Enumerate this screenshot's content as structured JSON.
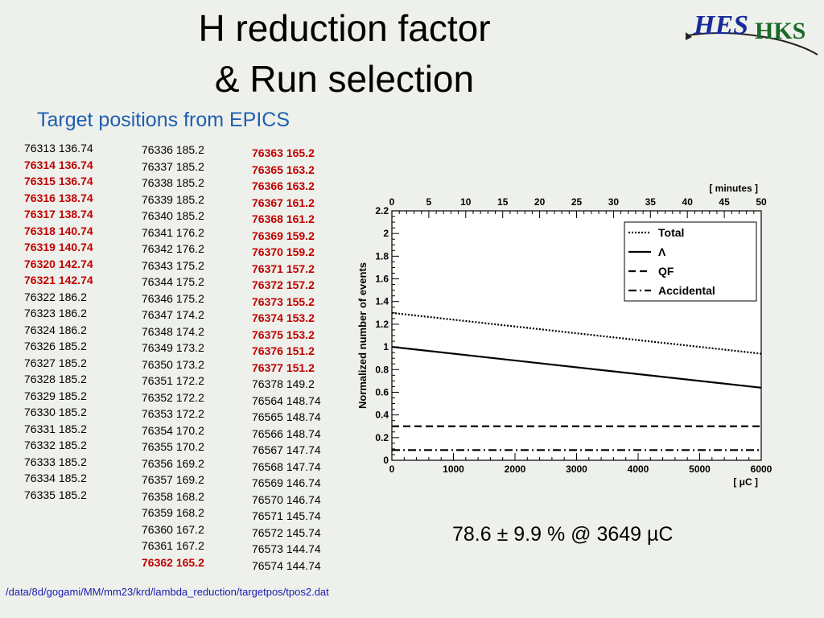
{
  "slide": {
    "title_line1": "H reduction factor",
    "title_line2": "& Run selection",
    "subtitle": "Target positions from EPICS",
    "logo_text": {
      "part1": "HES",
      "part2": "HKS"
    },
    "result": "78.6 ± 9.9 % @ 3649 µC",
    "file_path": "/data/8d/gogami/MM/mm23/krd/lambda_reduction/targetpos/tpos2.dat",
    "highlight_color": "#c00000",
    "subtitle_color": "#1f5fb0"
  },
  "runs": {
    "column1": [
      {
        "text": "76313 136.74",
        "red": false
      },
      {
        "text": "76314 136.74",
        "red": true
      },
      {
        "text": "76315 136.74",
        "red": true
      },
      {
        "text": "76316 138.74",
        "red": true
      },
      {
        "text": "76317 138.74",
        "red": true
      },
      {
        "text": "76318 140.74",
        "red": true
      },
      {
        "text": "76319 140.74",
        "red": true
      },
      {
        "text": "76320 142.74",
        "red": true
      },
      {
        "text": "76321 142.74",
        "red": true
      },
      {
        "text": "76322 186.2",
        "red": false
      },
      {
        "text": "76323 186.2",
        "red": false
      },
      {
        "text": "76324 186.2",
        "red": false
      },
      {
        "text": "76326 185.2",
        "red": false
      },
      {
        "text": "76327 185.2",
        "red": false
      },
      {
        "text": "76328 185.2",
        "red": false
      },
      {
        "text": "76329 185.2",
        "red": false
      },
      {
        "text": "76330 185.2",
        "red": false
      },
      {
        "text": "76331 185.2",
        "red": false
      },
      {
        "text": "76332 185.2",
        "red": false
      },
      {
        "text": "76333 185.2",
        "red": false
      },
      {
        "text": "76334 185.2",
        "red": false
      },
      {
        "text": "76335 185.2",
        "red": false
      }
    ],
    "column2": [
      {
        "text": "76336 185.2",
        "red": false
      },
      {
        "text": "76337 185.2",
        "red": false
      },
      {
        "text": "76338 185.2",
        "red": false
      },
      {
        "text": "76339 185.2",
        "red": false
      },
      {
        "text": "76340 185.2",
        "red": false
      },
      {
        "text": "76341 176.2",
        "red": false
      },
      {
        "text": "76342 176.2",
        "red": false
      },
      {
        "text": "76343 175.2",
        "red": false
      },
      {
        "text": "76344 175.2",
        "red": false
      },
      {
        "text": "76346 175.2",
        "red": false
      },
      {
        "text": "76347 174.2",
        "red": false
      },
      {
        "text": "76348 174.2",
        "red": false
      },
      {
        "text": "76349 173.2",
        "red": false
      },
      {
        "text": "76350 173.2",
        "red": false
      },
      {
        "text": "76351 172.2",
        "red": false
      },
      {
        "text": "76352 172.2",
        "red": false
      },
      {
        "text": "76353 172.2",
        "red": false
      },
      {
        "text": "76354 170.2",
        "red": false
      },
      {
        "text": "76355 170.2",
        "red": false
      },
      {
        "text": "76356 169.2",
        "red": false
      },
      {
        "text": "76357 169.2",
        "red": false
      },
      {
        "text": "76358 168.2",
        "red": false
      },
      {
        "text": "76359 168.2",
        "red": false
      },
      {
        "text": "76360 167.2",
        "red": false
      },
      {
        "text": "76361 167.2",
        "red": false
      },
      {
        "text": "76362 165.2",
        "red": true
      }
    ],
    "column3": [
      {
        "text": "76363 165.2",
        "red": true
      },
      {
        "text": "76365 163.2",
        "red": true
      },
      {
        "text": "76366 163.2",
        "red": true
      },
      {
        "text": "76367 161.2",
        "red": true
      },
      {
        "text": "76368 161.2",
        "red": true
      },
      {
        "text": "76369 159.2",
        "red": true
      },
      {
        "text": "76370 159.2",
        "red": true
      },
      {
        "text": "76371 157.2",
        "red": true
      },
      {
        "text": "76372 157.2",
        "red": true
      },
      {
        "text": "76373 155.2",
        "red": true
      },
      {
        "text": "76374 153.2",
        "red": true
      },
      {
        "text": "76375 153.2",
        "red": true
      },
      {
        "text": "76376 151.2",
        "red": true
      },
      {
        "text": "76377 151.2",
        "red": true
      },
      {
        "text": "76378 149.2",
        "red": false
      },
      {
        "text": "76564 148.74",
        "red": false
      },
      {
        "text": "76565 148.74",
        "red": false
      },
      {
        "text": "76566 148.74",
        "red": false
      },
      {
        "text": "76567 147.74",
        "red": false
      },
      {
        "text": "76568 147.74",
        "red": false
      },
      {
        "text": "76569 146.74",
        "red": false
      },
      {
        "text": "76570 146.74",
        "red": false
      },
      {
        "text": "76571 145.74",
        "red": false
      },
      {
        "text": "76572 145.74",
        "red": false
      },
      {
        "text": "76573 144.74",
        "red": false
      },
      {
        "text": "76574 144.74",
        "red": false
      }
    ]
  },
  "chart_data": {
    "type": "line",
    "ylabel": "Normalized number of events",
    "xlabel": "[  μC ]",
    "x2label": "[ minutes ]",
    "xlim": [
      0,
      6000
    ],
    "x2lim": [
      0,
      50
    ],
    "ylim": [
      0,
      2.2
    ],
    "x_ticks": [
      0,
      1000,
      2000,
      3000,
      4000,
      5000,
      6000
    ],
    "x_tick_labels": [
      "0",
      "1000",
      "2000",
      "3000",
      "4000",
      "5000",
      "6000"
    ],
    "x2_ticks": [
      0,
      5,
      10,
      15,
      20,
      25,
      30,
      35,
      40,
      45,
      50
    ],
    "x2_tick_labels": [
      "0",
      "5",
      "10",
      "15",
      "20",
      "25",
      "30",
      "35",
      "40",
      "45",
      "50"
    ],
    "y_ticks": [
      0,
      0.2,
      0.4,
      0.6,
      0.8,
      1,
      1.2,
      1.4,
      1.6,
      1.8,
      2,
      2.2
    ],
    "y_tick_labels": [
      "0",
      "0.2",
      "0.4",
      "0.6",
      "0.8",
      "1",
      "1.2",
      "1.4",
      "1.6",
      "1.8",
      "2",
      "2.2"
    ],
    "grid": false,
    "legend_position": "top-right",
    "series": [
      {
        "name": "Total",
        "style": "dotted",
        "x": [
          0,
          6000
        ],
        "y": [
          1.3,
          0.94
        ]
      },
      {
        "name": "Λ",
        "style": "solid",
        "x": [
          0,
          6000
        ],
        "y": [
          1.0,
          0.64
        ]
      },
      {
        "name": "QF",
        "style": "dashed",
        "x": [
          0,
          6000
        ],
        "y": [
          0.3,
          0.3
        ]
      },
      {
        "name": "Accidental",
        "style": "dashdot",
        "x": [
          0,
          6000
        ],
        "y": [
          0.09,
          0.09
        ]
      }
    ]
  }
}
